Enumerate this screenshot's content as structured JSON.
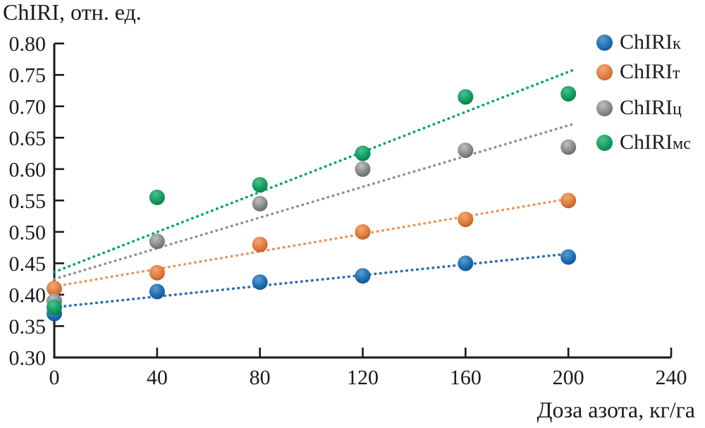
{
  "chart_data": {
    "type": "scatter",
    "title": "ChIRI, отн. ед.",
    "xlabel": "Доза азота, кг/га",
    "xlim": [
      0,
      240
    ],
    "ylim": [
      0.3,
      0.8
    ],
    "x_ticks": [
      0,
      40,
      80,
      120,
      160,
      200,
      240
    ],
    "y_ticks": [
      0.3,
      0.35,
      0.4,
      0.45,
      0.5,
      0.55,
      0.6,
      0.65,
      0.7,
      0.75,
      0.8
    ],
    "grid": false,
    "legend_position": "top-right",
    "axis_color": "#1a1a1a",
    "x": [
      0,
      40,
      80,
      120,
      160,
      200
    ],
    "series": [
      {
        "label": "ChIRIк",
        "label_base": "ChIRI",
        "label_sub": "к",
        "color": "#1c6db3",
        "color_light": "#5e9bd0",
        "color_dark": "#0c4679",
        "line_color": "#2b6cb4",
        "values": [
          0.37,
          0.405,
          0.42,
          0.43,
          0.45,
          0.46
        ],
        "trend": {
          "x": [
            0,
            202
          ],
          "y": [
            0.38,
            0.466
          ]
        }
      },
      {
        "label": "ChIRIт",
        "label_base": "ChIRI",
        "label_sub": "т",
        "color": "#e07a3c",
        "color_light": "#f2a876",
        "color_dark": "#a8511d",
        "line_color": "#ec9659",
        "values": [
          0.41,
          0.435,
          0.48,
          0.5,
          0.52,
          0.55
        ],
        "trend": {
          "x": [
            0,
            202
          ],
          "y": [
            0.413,
            0.554
          ]
        }
      },
      {
        "label": "ChIRIц",
        "label_base": "ChIRI",
        "label_sub": "ц",
        "color": "#85898b",
        "color_light": "#bdc0c1",
        "color_dark": "#53575a",
        "line_color": "#8e9296",
        "values": [
          0.39,
          0.485,
          0.545,
          0.6,
          0.63,
          0.635
        ],
        "trend": {
          "x": [
            0,
            202
          ],
          "y": [
            0.425,
            0.672
          ]
        }
      },
      {
        "label": "ChIRIмс",
        "label_base": "ChIRI",
        "label_sub": "мс",
        "color": "#109d5f",
        "color_light": "#4fc08d",
        "color_dark": "#056b3f",
        "line_color": "#00a470",
        "values": [
          0.38,
          0.555,
          0.575,
          0.625,
          0.715,
          0.72
        ],
        "trend": {
          "x": [
            0,
            202
          ],
          "y": [
            0.436,
            0.758
          ]
        }
      }
    ]
  }
}
